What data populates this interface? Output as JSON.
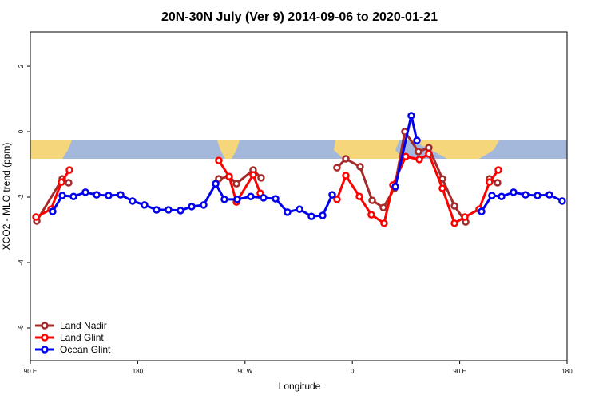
{
  "chart_data": {
    "type": "line",
    "title": "20N-30N July (Ver 9)   2014-09-06 to 2020-01-21",
    "x_label": "Longitude",
    "y_label": "XCO2 - MLO trend (ppm)",
    "xlim": [
      90,
      540
    ],
    "xticks": [
      {
        "value": 90,
        "label": "90 E"
      },
      180,
      {
        "value": 270,
        "label": "90 W"
      },
      {
        "value": 360,
        "label": "0"
      },
      {
        "value": 450,
        "label": "90 E"
      },
      {
        "value": 540,
        "label": "180"
      }
    ],
    "ylim": [
      -7,
      3.05
    ],
    "yticks": [
      -6,
      -4,
      -2,
      0,
      2
    ],
    "legend": "bottom-left",
    "series": [
      {
        "name": "Land Nadir",
        "color": "#a52a2a",
        "x": [
          95.4,
          116.8,
          122.1,
          null,
          248.0,
          256.7,
          262.8,
          276.8,
          283.5,
          null,
          347.1,
          354.5,
          366.5,
          376.6,
          386.0,
          395.3,
          404.0,
          415.4,
          424.1,
          435.5,
          445.6,
          455.0,
          null,
          475.0,
          481.7
        ],
        "values": [
          -2.73,
          -1.44,
          -1.56,
          null,
          -1.44,
          -1.37,
          -1.59,
          -1.17,
          -1.41,
          null,
          -1.1,
          -0.83,
          -1.07,
          -2.1,
          -2.32,
          -1.73,
          0.0,
          -0.61,
          -0.49,
          -1.44,
          -2.27,
          -2.76,
          null,
          -1.44,
          -1.56
        ]
      },
      {
        "name": "Land Glint",
        "color": "#ff0000",
        "x": [
          94.7,
          107.4,
          116.1,
          122.8,
          null,
          248.0,
          256.7,
          262.8,
          276.8,
          282.8,
          null,
          347.1,
          354.5,
          365.9,
          375.9,
          386.6,
          394.0,
          404.7,
          416.1,
          424.1,
          435.5,
          445.6,
          454.3,
          466.3,
          475.0,
          482.4
        ],
        "values": [
          -2.61,
          -2.37,
          -1.54,
          -1.17,
          null,
          -0.88,
          -1.37,
          -2.15,
          -1.32,
          -1.88,
          null,
          -2.07,
          -1.34,
          -1.98,
          -2.54,
          -2.8,
          -1.63,
          -0.76,
          -0.85,
          -0.68,
          -1.73,
          -2.8,
          -2.61,
          -2.37,
          -1.54,
          -1.17
        ]
      },
      {
        "name": "Ocean Glint",
        "color": "#0000ee",
        "x": [
          108.7,
          116.8,
          126.2,
          136.2,
          145.6,
          155.6,
          165.7,
          175.7,
          185.7,
          195.8,
          205.8,
          215.9,
          225.3,
          235.3,
          245.4,
          252.7,
          263.4,
          274.8,
          285.5,
          295.6,
          305.6,
          315.7,
          325.7,
          335.1,
          343.1,
          null,
          396.0,
          409.4,
          414.1,
          null,
          468.3,
          477.0,
          485.1,
          495.1,
          505.2,
          515.2,
          525.2,
          535.9
        ],
        "values": [
          -2.44,
          -1.95,
          -1.98,
          -1.85,
          -1.93,
          -1.95,
          -1.93,
          -2.12,
          -2.24,
          -2.39,
          -2.39,
          -2.41,
          -2.29,
          -2.24,
          -1.59,
          -2.07,
          -2.07,
          -1.98,
          -2.02,
          -2.05,
          -2.46,
          -2.37,
          -2.59,
          -2.56,
          -1.93,
          null,
          -1.68,
          0.49,
          -0.27,
          null,
          -2.44,
          -1.95,
          -1.98,
          -1.85,
          -1.93,
          -1.95,
          -1.93,
          -2.12
        ]
      }
    ]
  }
}
